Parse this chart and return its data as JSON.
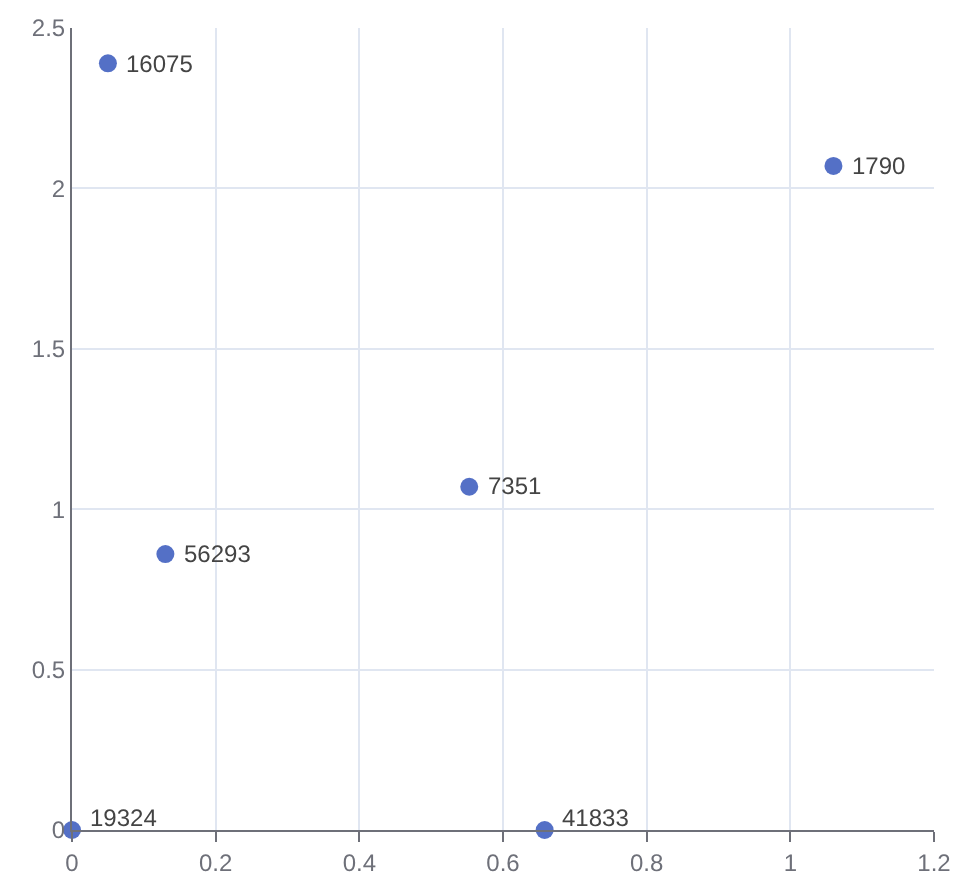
{
  "chart_data": {
    "type": "scatter",
    "x": [
      0.05,
      1.06,
      0.553,
      0.13,
      0,
      0.658
    ],
    "values": [
      2.39,
      2.07,
      1.07,
      0.86,
      0,
      0
    ],
    "annotations": [
      {
        "text": "16075",
        "x": 0.05,
        "y": 2.39
      },
      {
        "text": "1790",
        "x": 1.06,
        "y": 2.07
      },
      {
        "text": "7351",
        "x": 0.553,
        "y": 1.07
      },
      {
        "text": "56293",
        "x": 0.13,
        "y": 0.86
      },
      {
        "text": "19324",
        "x": 0,
        "y": 0
      },
      {
        "text": "41833",
        "x": 0.658,
        "y": 0
      }
    ],
    "color": "#5470c6",
    "marker": "circle",
    "grid": true,
    "xlim": [
      0,
      1.2
    ],
    "xticks": [
      0,
      0.2,
      0.4,
      0.6,
      0.8,
      1,
      1.2
    ],
    "ylim": [
      0,
      2.5
    ],
    "yticks": [
      0,
      0.5,
      1,
      1.5,
      2,
      2.5
    ]
  }
}
